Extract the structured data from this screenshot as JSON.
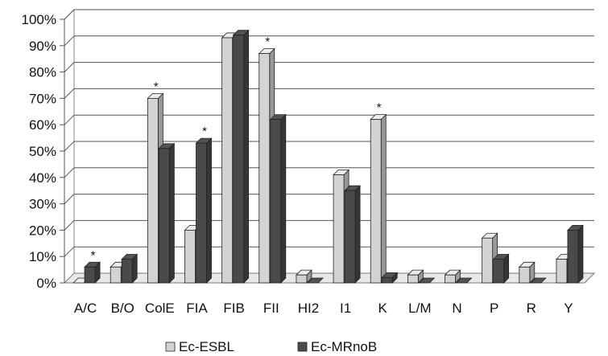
{
  "chart_data": {
    "type": "bar",
    "style": "3d-clustered-column",
    "categories": [
      "A/C",
      "B/O",
      "ColE",
      "FIA",
      "FIB",
      "FII",
      "HI2",
      "I1",
      "K",
      "L/M",
      "N",
      "P",
      "R",
      "Y"
    ],
    "series": [
      {
        "name": "Ec-ESBL",
        "color": "#d3d3d3",
        "values": [
          0,
          6,
          70,
          20,
          93,
          87,
          3,
          41,
          62,
          3,
          3,
          17,
          6,
          9
        ]
      },
      {
        "name": "Ec-MRnoB",
        "color": "#4a4a4a",
        "values": [
          6,
          9,
          51,
          53,
          94,
          62,
          0,
          35,
          2,
          0,
          0,
          9,
          0,
          20
        ]
      }
    ],
    "significance_marks": [
      {
        "category": "A/C",
        "label": "*"
      },
      {
        "category": "ColE",
        "label": "*"
      },
      {
        "category": "FIA",
        "label": "*"
      },
      {
        "category": "FII",
        "label": "*"
      },
      {
        "category": "K",
        "label": "*"
      }
    ],
    "ylim": [
      0,
      100
    ],
    "y_ticks": [
      "0%",
      "10%",
      "20%",
      "30%",
      "40%",
      "50%",
      "60%",
      "70%",
      "80%",
      "90%",
      "100%"
    ],
    "grid": "horizontal",
    "legend": "bottom-center"
  }
}
